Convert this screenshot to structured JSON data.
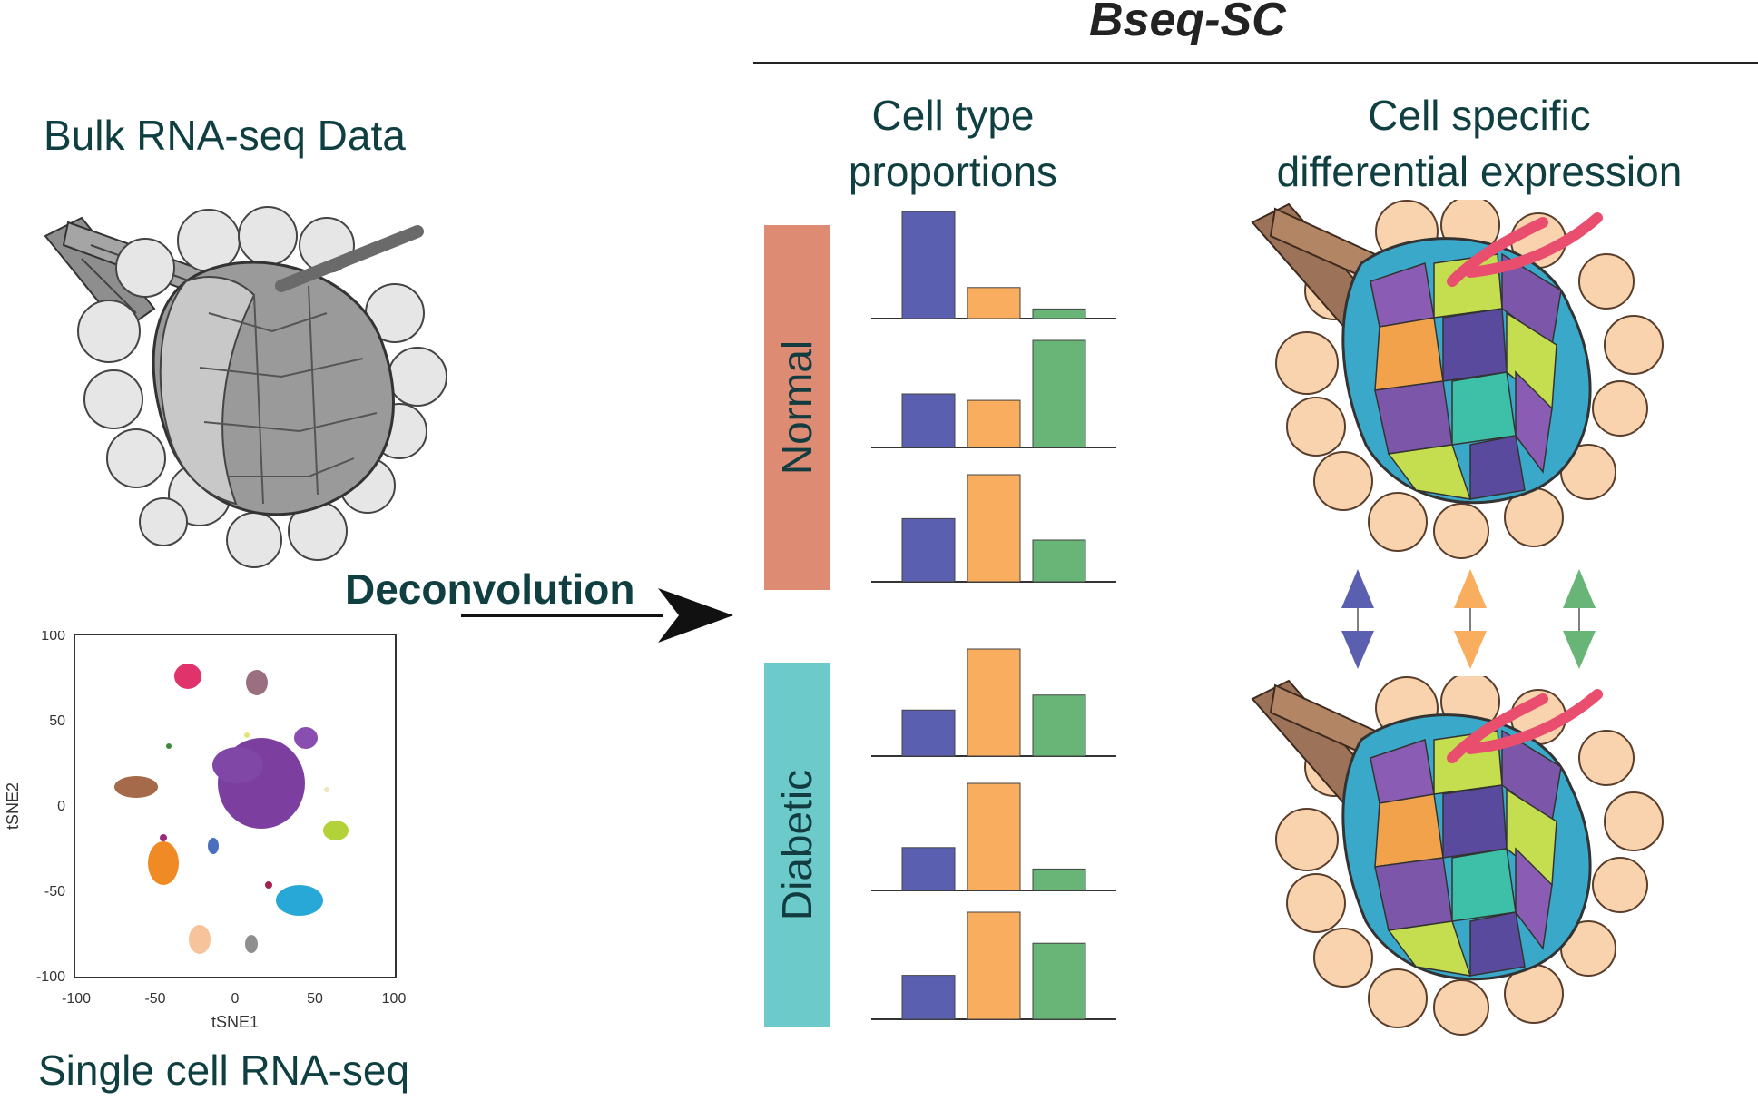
{
  "header": {
    "title": "Bseq-SC"
  },
  "left": {
    "bulk_title": "Bulk RNA-seq Data",
    "sc_title": "Single cell RNA-seq",
    "arrow_label": "Deconvolution"
  },
  "tsne": {
    "xlabel": "tSNE1",
    "ylabel": "tSNE2",
    "x_ticks": [
      "-100",
      "-50",
      "0",
      "50",
      "100"
    ],
    "y_ticks": [
      "100",
      "50",
      "0",
      "-50",
      "-100"
    ]
  },
  "columns": {
    "proportions_title_1": "Cell type",
    "proportions_title_2": "proportions",
    "expression_title_1": "Cell specific",
    "expression_title_2": "differential expression"
  },
  "groups": {
    "normal": "Normal",
    "diabetic": "Diabetic"
  },
  "colors": {
    "blue": "#5b5fb0",
    "orange": "#f8ad5f",
    "green": "#69b577",
    "normal": "#de8b74",
    "diabetic": "#6ccbca",
    "text_teal": "#0f3f40"
  },
  "chart_data": {
    "type": "bar",
    "note_series_colors": [
      "blue",
      "orange",
      "green"
    ],
    "panels": [
      {
        "group": "Normal",
        "values": [
          1.0,
          0.29,
          0.09
        ]
      },
      {
        "group": "Normal",
        "values": [
          0.5,
          0.44,
          1.0
        ]
      },
      {
        "group": "Normal",
        "values": [
          0.59,
          1.0,
          0.39
        ]
      },
      {
        "group": "Diabetic",
        "values": [
          0.43,
          1.0,
          0.57
        ]
      },
      {
        "group": "Diabetic",
        "values": [
          0.4,
          1.0,
          0.2
        ]
      },
      {
        "group": "Diabetic",
        "values": [
          0.41,
          1.0,
          0.71
        ]
      }
    ]
  }
}
